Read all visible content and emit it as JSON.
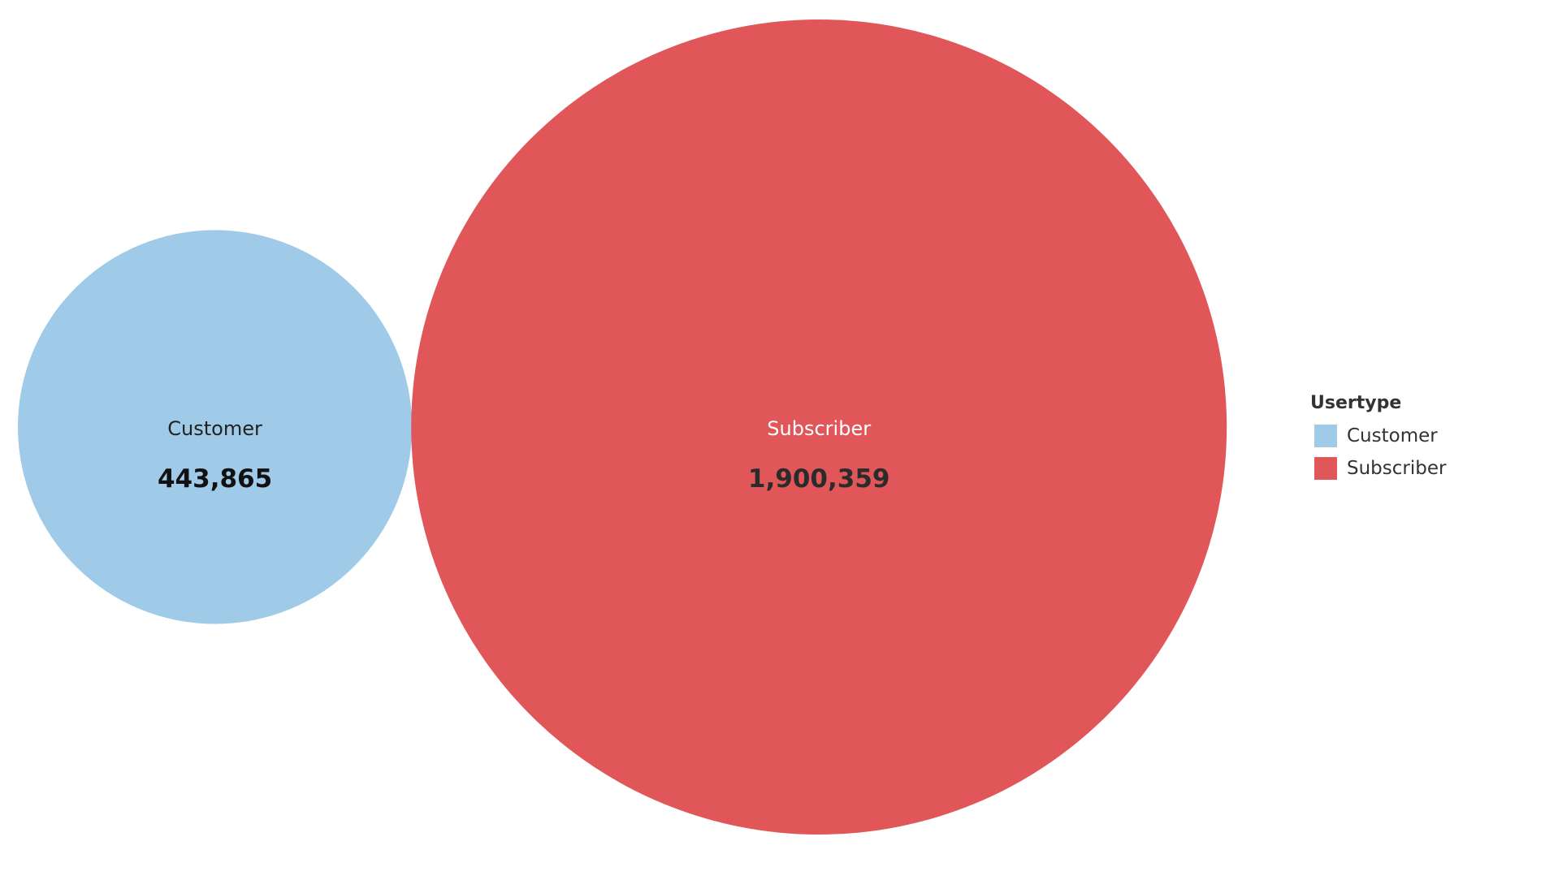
{
  "chart_data": {
    "type": "bubble",
    "series": [
      {
        "name": "Customer",
        "value": 443865,
        "value_label": "443,865",
        "color": "#a0cbe8",
        "name_color": "#222222",
        "value_color": "#111111"
      },
      {
        "name": "Subscriber",
        "value": 1900359,
        "value_label": "1,900,359",
        "color": "#e15759",
        "name_color": "#ffffff",
        "value_color": "#2b2b2b"
      }
    ],
    "title": "",
    "legend": {
      "title": "Usertype",
      "placement": "right",
      "items": [
        {
          "label": "Customer",
          "color": "#a0cbe8"
        },
        {
          "label": "Subscriber",
          "color": "#e15759"
        }
      ]
    }
  }
}
